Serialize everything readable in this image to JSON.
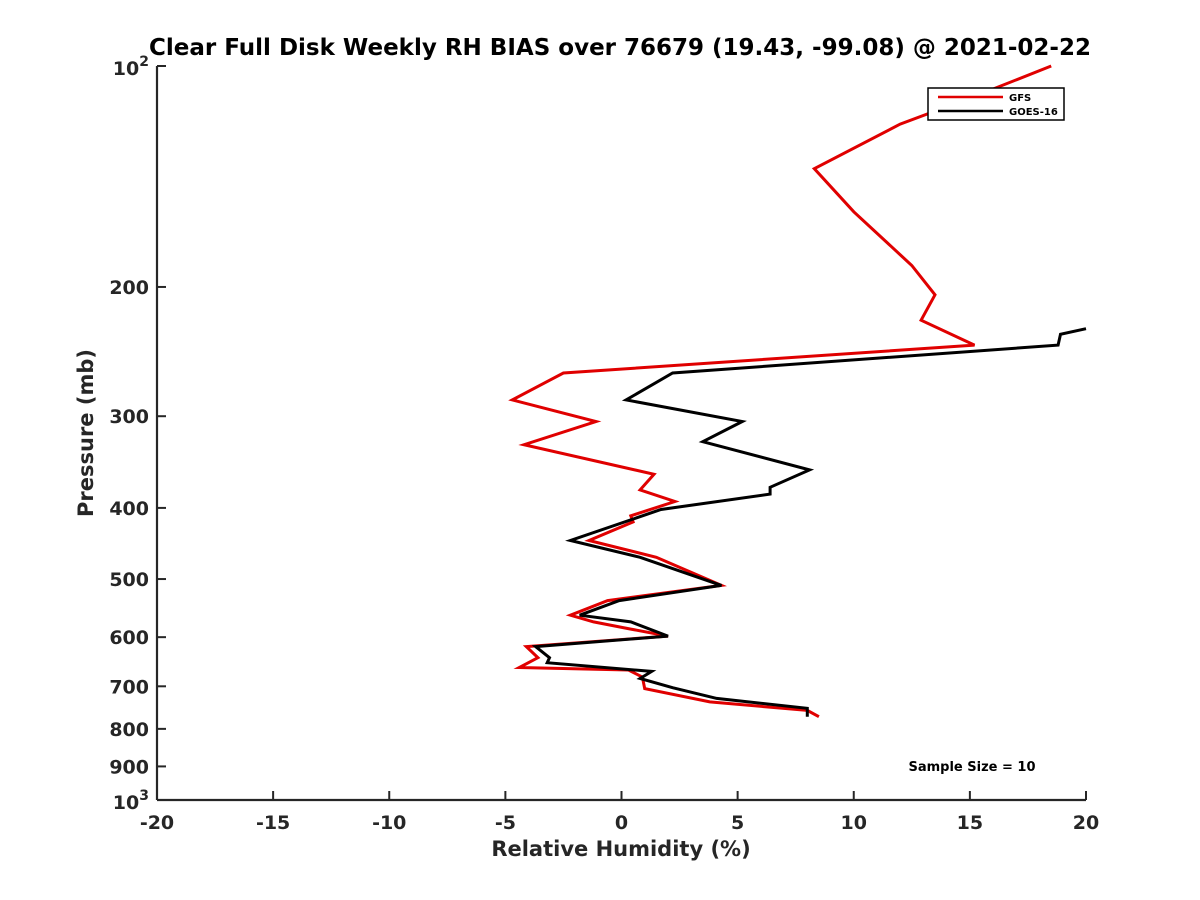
{
  "chart_data": {
    "type": "line",
    "title": "Clear Full Disk Weekly RH BIAS over 76679 (19.43, -99.08) @ 2021-02-22",
    "xlabel": "Relative Humidity (%)",
    "ylabel": "Pressure (mb)",
    "xlim": [
      -20,
      20
    ],
    "ylim": [
      100,
      1000
    ],
    "y_scale": "log",
    "y_reversed": true,
    "x_ticks": [
      "-20",
      "-15",
      "-10",
      "-5",
      "0",
      "5",
      "10",
      "15",
      "20"
    ],
    "y_ticks": [
      {
        "value": 100,
        "base": "10",
        "exp": "2"
      },
      {
        "value": 200,
        "label": "200"
      },
      {
        "value": 300,
        "label": "300"
      },
      {
        "value": 400,
        "label": "400"
      },
      {
        "value": 500,
        "label": "500"
      },
      {
        "value": 600,
        "label": "600"
      },
      {
        "value": 700,
        "label": "700"
      },
      {
        "value": 800,
        "label": "800"
      },
      {
        "value": 900,
        "label": "900"
      },
      {
        "value": 1000,
        "base": "10",
        "exp": "3"
      }
    ],
    "grid": false,
    "legend_position": "top-right",
    "annotation": "Sample Size = 10",
    "series": [
      {
        "name": "GFS",
        "color": "#e00000",
        "points": [
          [
            18.5,
            100
          ],
          [
            15.2,
            110
          ],
          [
            12.0,
            120
          ],
          [
            8.3,
            138
          ],
          [
            10.0,
            158
          ],
          [
            12.5,
            187
          ],
          [
            13.5,
            205
          ],
          [
            12.9,
            222
          ],
          [
            15.2,
            240
          ],
          [
            -2.5,
            262
          ],
          [
            -4.7,
            285
          ],
          [
            -1.1,
            305
          ],
          [
            -4.2,
            328
          ],
          [
            1.4,
            360
          ],
          [
            0.8,
            378
          ],
          [
            2.3,
            392
          ],
          [
            0.4,
            410
          ],
          [
            0.5,
            418
          ],
          [
            -1.4,
            443
          ],
          [
            1.5,
            467
          ],
          [
            4.3,
            510
          ],
          [
            -0.6,
            535
          ],
          [
            -2.2,
            560
          ],
          [
            -1.2,
            572
          ],
          [
            0.4,
            585
          ],
          [
            2.0,
            598
          ],
          [
            -4.1,
            618
          ],
          [
            -3.6,
            640
          ],
          [
            -4.4,
            660
          ],
          [
            0.3,
            665
          ],
          [
            0.9,
            680
          ],
          [
            1.0,
            705
          ],
          [
            3.8,
            735
          ],
          [
            8.0,
            755
          ],
          [
            8.5,
            770
          ]
        ]
      },
      {
        "name": "GOES-16",
        "color": "#000000",
        "points": [
          [
            20.0,
            228
          ],
          [
            18.9,
            232
          ],
          [
            18.8,
            240
          ],
          [
            2.2,
            262
          ],
          [
            0.2,
            285
          ],
          [
            5.2,
            305
          ],
          [
            3.5,
            325
          ],
          [
            8.1,
            355
          ],
          [
            6.4,
            375
          ],
          [
            6.4,
            383
          ],
          [
            1.7,
            402
          ],
          [
            -2.2,
            443
          ],
          [
            0.8,
            467
          ],
          [
            4.3,
            510
          ],
          [
            -0.1,
            535
          ],
          [
            -1.8,
            560
          ],
          [
            0.4,
            572
          ],
          [
            2.0,
            598
          ],
          [
            -3.7,
            618
          ],
          [
            -3.1,
            640
          ],
          [
            -3.2,
            650
          ],
          [
            1.3,
            668
          ],
          [
            0.8,
            683
          ],
          [
            2.2,
            703
          ],
          [
            4.1,
            727
          ],
          [
            8.0,
            750
          ],
          [
            8.0,
            770
          ]
        ]
      }
    ]
  }
}
